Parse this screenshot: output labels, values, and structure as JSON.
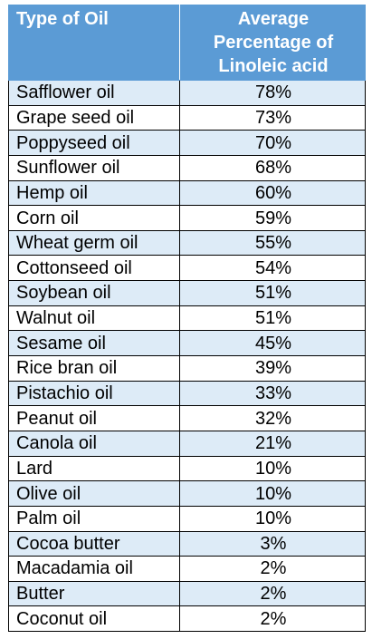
{
  "table": {
    "headers": {
      "oil": "Type of Oil",
      "percentage_lines": [
        "Average",
        "Percentage of",
        "Linoleic acid"
      ]
    },
    "colors": {
      "header_bg": "#5B9BD5",
      "header_text": "#FFFFFF",
      "band_row": "#DDEBF7",
      "plain_row": "#FFFFFF",
      "border": "#000000"
    },
    "rows": [
      {
        "oil": "Safflower oil",
        "percentage": "78%"
      },
      {
        "oil": "Grape seed oil",
        "percentage": "73%"
      },
      {
        "oil": "Poppyseed oil",
        "percentage": "70%"
      },
      {
        "oil": "Sunflower oil",
        "percentage": "68%"
      },
      {
        "oil": "Hemp oil",
        "percentage": "60%"
      },
      {
        "oil": "Corn oil",
        "percentage": "59%"
      },
      {
        "oil": "Wheat germ oil",
        "percentage": "55%"
      },
      {
        "oil": "Cottonseed oil",
        "percentage": "54%"
      },
      {
        "oil": "Soybean oil",
        "percentage": "51%"
      },
      {
        "oil": "Walnut oil",
        "percentage": "51%"
      },
      {
        "oil": "Sesame oil",
        "percentage": "45%"
      },
      {
        "oil": "Rice bran oil",
        "percentage": "39%"
      },
      {
        "oil": "Pistachio oil",
        "percentage": "33%"
      },
      {
        "oil": "Peanut oil",
        "percentage": "32%"
      },
      {
        "oil": "Canola oil",
        "percentage": "21%"
      },
      {
        "oil": "Lard",
        "percentage": "10%"
      },
      {
        "oil": "Olive oil",
        "percentage": "10%"
      },
      {
        "oil": "Palm oil",
        "percentage": "10%"
      },
      {
        "oil": "Cocoa butter",
        "percentage": "3%"
      },
      {
        "oil": "Macadamia oil",
        "percentage": "2%"
      },
      {
        "oil": "Butter",
        "percentage": "2%"
      },
      {
        "oil": "Coconut oil",
        "percentage": "2%"
      }
    ]
  }
}
